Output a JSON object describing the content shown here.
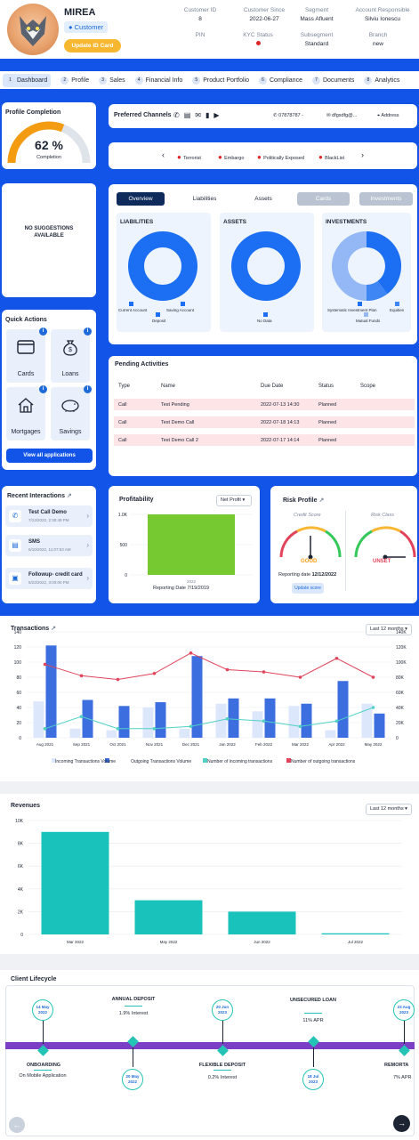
{
  "header": {
    "name": "MIREA",
    "segment_tag": "Customer",
    "update_button": "Update ID Card",
    "fields": [
      {
        "label": "Customer ID",
        "value": "8"
      },
      {
        "label": "Customer Since",
        "value": "2022-06-27"
      },
      {
        "label": "Segment",
        "value": "Mass Afluent"
      },
      {
        "label": "Account Responsible",
        "value": "Silviu Ionescu"
      },
      {
        "label": "PIN",
        "value": ""
      },
      {
        "label": "KYC Status",
        "value": ""
      },
      {
        "label": "Subsegment",
        "value": "Standard"
      },
      {
        "label": "Branch",
        "value": "new"
      }
    ],
    "kyc_color": "#e02424"
  },
  "tabs": [
    {
      "num": "1",
      "label": "Dashboard"
    },
    {
      "num": "2",
      "label": "Profile"
    },
    {
      "num": "3",
      "label": "Sales"
    },
    {
      "num": "4",
      "label": "Financial Info"
    },
    {
      "num": "5",
      "label": "Product Portfolio"
    },
    {
      "num": "6",
      "label": "Compliance"
    },
    {
      "num": "7",
      "label": "Documents"
    },
    {
      "num": "8",
      "label": "Analytics"
    }
  ],
  "profile_completion": {
    "title": "Profile Completion",
    "value": "62 %",
    "label": "Completion",
    "percent": 0.62
  },
  "preferred_channels": {
    "title": "Preferred Channels",
    "phone": "07878787 -",
    "email": "dfgsdfg@...",
    "address": "Address"
  },
  "risk_flags": [
    "Terrorist",
    "Embargo",
    "Politically Exposed",
    "BlackList"
  ],
  "suggestions": {
    "text1": "NO SUGGESTIONS",
    "text2": "AVAILABLE"
  },
  "overview_tabs": [
    "Overview",
    "Liabilities",
    "Assets",
    "Cards",
    "Investments"
  ],
  "donuts": {
    "liabilities": {
      "title": "LIABILITIES",
      "legend": [
        "Current Account",
        "Saving Account",
        "Deposit"
      ]
    },
    "assets": {
      "title": "ASSETS",
      "legend": [
        "No Data"
      ]
    },
    "investments": {
      "title": "INVESTMENTS",
      "legend": [
        "Systematic Investment Plan",
        "Equities",
        "Mutual Funds"
      ]
    }
  },
  "quick_actions": {
    "title": "Quick Actions",
    "items": [
      {
        "label": "Cards",
        "badge": "i"
      },
      {
        "label": "Loans",
        "badge": "i"
      },
      {
        "label": "Mortgages",
        "badge": "i"
      },
      {
        "label": "Savings",
        "badge": "i"
      }
    ],
    "view_all": "View all applications"
  },
  "pending": {
    "title": "Pending Activities",
    "headers": [
      "Type",
      "Name",
      "Due Date",
      "Status",
      "Scope"
    ],
    "rows": [
      [
        "Call",
        "Test Pending",
        "2022-07-13 14:30",
        "Planned",
        ""
      ],
      [
        "Call",
        "Test Demo Call",
        "2022-07-18 14:13",
        "Planned",
        ""
      ],
      [
        "Call",
        "Test Demo Call 2",
        "2022-07-17 14:14",
        "Planned",
        ""
      ]
    ]
  },
  "recent": {
    "title": "Recent Interactions",
    "items": [
      {
        "title": "Test Call Demo",
        "date": "7/13/2022, 2:30:49 PM"
      },
      {
        "title": "SMS",
        "date": "6/10/2022, 11:07:53 AM"
      },
      {
        "title": "Followup- credit card",
        "date": "5/23/2022, 3:00:00 PM"
      }
    ]
  },
  "profitability": {
    "title": "Profitability",
    "select": "Net Profit",
    "reporting": "Reporting Date 7/19/2019"
  },
  "risk_profile": {
    "title": "Risk Profile",
    "credit_label": "Credit Score",
    "credit_value": "GOOD",
    "risk_label": "Risk Class",
    "risk_value": "UNSET",
    "reporting_prefix": "Reporting date",
    "reporting_date": "12/12/2022",
    "update_btn": "Update score"
  },
  "transactions_title": "Transactions",
  "transactions_select": "Last 12 months",
  "revenues_title": "Revenues",
  "revenues_select": "Last 12 months",
  "lifecycle": {
    "title": "Client Lifecycle",
    "top": [
      {
        "date1": "14 May",
        "date2": "2022",
        "title": "",
        "sub": ""
      },
      {
        "date1": "",
        "date2": "",
        "title": "ANNUAL DEPOSIT",
        "sub": "1.9% Interest"
      },
      {
        "date1": "20 Jun",
        "date2": "2023",
        "title": "",
        "sub": ""
      },
      {
        "date1": "",
        "date2": "",
        "title": "UNSECURED LOAN",
        "sub": "11% APR"
      },
      {
        "date1": "23 Aug",
        "date2": "2023",
        "title": "",
        "sub": ""
      }
    ],
    "bottom": [
      {
        "title": "ONBOARDING",
        "sub": "On Mobile Application"
      },
      {
        "date1": "20 May",
        "date2": "2022"
      },
      {
        "title": "FLEXIBLE DEPOSIT",
        "sub": "0.2% Interest"
      },
      {
        "date1": "18 Jul",
        "date2": "2023"
      },
      {
        "title": "REMORTA",
        "sub": "7% APR"
      }
    ]
  },
  "chart_data": [
    {
      "type": "bar",
      "title": "Profitability",
      "categories": [
        "2022"
      ],
      "values": [
        1000
      ],
      "ylim": [
        0,
        1000
      ],
      "yticks": [
        "0",
        "500",
        "1.0K"
      ]
    },
    {
      "type": "bar",
      "title": "Transactions",
      "categories": [
        "Aug 2021",
        "Sep 2021",
        "Oct 2021",
        "Nov 2021",
        "Dec 2021",
        "Jan 2022",
        "Feb 2022",
        "Mar 2022",
        "Apr 2022",
        "May 2022"
      ],
      "series": [
        {
          "name": "Incoming Transactions Volume",
          "kind": "bar",
          "axis": "left",
          "color": "#dde7fb",
          "values": [
            48,
            12,
            10,
            40,
            12,
            45,
            35,
            42,
            10,
            45
          ]
        },
        {
          "name": "Outgoing Transactions Volume",
          "kind": "bar",
          "axis": "left",
          "color": "#3c6ee0",
          "values": [
            122,
            50,
            42,
            47,
            108,
            52,
            52,
            45,
            75,
            32
          ]
        },
        {
          "name": "Number of incoming transactions",
          "kind": "line",
          "axis": "right",
          "color": "#4fd1c5",
          "values": [
            12,
            28,
            12,
            12,
            15,
            25,
            22,
            15,
            22,
            40
          ]
        },
        {
          "name": "Number of outgoing transactions",
          "kind": "line",
          "axis": "right",
          "color": "#e0435a",
          "values": [
            97,
            82,
            77,
            85,
            112,
            90,
            87,
            80,
            105,
            80
          ]
        }
      ],
      "ylim": [
        0,
        140
      ],
      "y2lim": [
        0,
        140000
      ],
      "yticks": [
        "0",
        "20",
        "40",
        "60",
        "80",
        "100",
        "120",
        "140"
      ],
      "y2ticks": [
        "0",
        "20K",
        "40K",
        "60K",
        "80K",
        "100K",
        "120K",
        "140K"
      ]
    },
    {
      "type": "bar",
      "title": "Revenues",
      "categories": [
        "Mar 2022",
        "May 2022",
        "Jun 2022",
        "Jul 2022"
      ],
      "values": [
        9000,
        3000,
        2000,
        100
      ],
      "ylim": [
        0,
        10000
      ],
      "yticks": [
        "0",
        "2K",
        "4K",
        "6K",
        "8K",
        "10K"
      ]
    }
  ]
}
